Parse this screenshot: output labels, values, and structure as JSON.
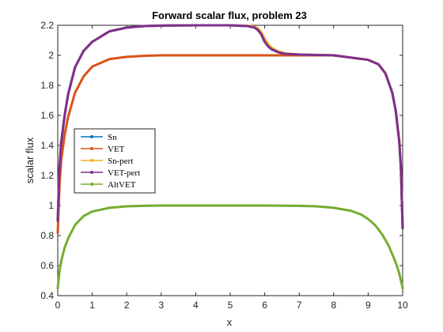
{
  "chart_data": {
    "type": "line",
    "title": "Forward scalar flux, problem 23",
    "xlabel": "x",
    "ylabel": "scalar flux",
    "xlim": [
      0,
      10
    ],
    "ylim": [
      0.4,
      2.2
    ],
    "xticks": [
      "0",
      "1",
      "2",
      "3",
      "4",
      "5",
      "6",
      "7",
      "8",
      "9",
      "10"
    ],
    "yticks": [
      "0.4",
      "0.6",
      "0.8",
      "1",
      "1.2",
      "1.4",
      "1.6",
      "1.8",
      "2",
      "2.2"
    ],
    "grid": false,
    "legend_position": "left",
    "series": [
      {
        "name": "Sn",
        "color": "#0072BD",
        "x": [
          0,
          0.05,
          0.1,
          0.2,
          0.3,
          0.5,
          0.75,
          1.0,
          1.5,
          2.0,
          2.5,
          3.0,
          4.0,
          5.0,
          5.5,
          5.7,
          5.8,
          5.9,
          6.0,
          6.1,
          6.2,
          6.4,
          6.6,
          7.0,
          8.0,
          9.0,
          9.3,
          9.5,
          9.7,
          9.8,
          9.9,
          9.95,
          10.0
        ],
        "y": [
          0.9,
          1.25,
          1.42,
          1.6,
          1.74,
          1.92,
          2.03,
          2.09,
          2.16,
          2.185,
          2.195,
          2.198,
          2.2,
          2.2,
          2.195,
          2.185,
          2.17,
          2.14,
          2.09,
          2.06,
          2.04,
          2.02,
          2.01,
          2.005,
          2.0,
          1.97,
          1.94,
          1.88,
          1.75,
          1.63,
          1.43,
          1.25,
          0.85
        ]
      },
      {
        "name": "VET",
        "color": "#D95319",
        "x": [
          0,
          0.05,
          0.1,
          0.2,
          0.3,
          0.5,
          0.75,
          1.0,
          1.5,
          2.0,
          2.5,
          3.0,
          4.0,
          5.0,
          6.0,
          7.0,
          8.0,
          9.0,
          9.3,
          9.5,
          9.7,
          9.8,
          9.9,
          9.95,
          10.0
        ],
        "y": [
          0.82,
          1.13,
          1.3,
          1.47,
          1.59,
          1.75,
          1.86,
          1.925,
          1.975,
          1.99,
          1.997,
          2.0,
          2.0,
          2.0,
          2.0,
          2.0,
          2.0,
          1.97,
          1.94,
          1.88,
          1.75,
          1.63,
          1.43,
          1.25,
          0.85
        ]
      },
      {
        "name": "Sn-pert",
        "color": "#EDB120",
        "x": [
          0,
          0.05,
          0.1,
          0.2,
          0.3,
          0.5,
          0.75,
          1.0,
          1.5,
          2.0,
          2.5,
          3.0,
          4.0,
          5.0,
          5.5,
          5.7,
          5.8,
          5.9,
          6.0,
          6.1,
          6.2,
          6.4,
          6.6,
          7.0,
          8.0,
          9.0,
          9.3,
          9.5,
          9.7,
          9.8,
          9.9,
          9.95,
          10.0
        ],
        "y": [
          0.9,
          1.25,
          1.42,
          1.6,
          1.74,
          1.92,
          2.03,
          2.09,
          2.16,
          2.185,
          2.195,
          2.198,
          2.2,
          2.2,
          2.197,
          2.19,
          2.18,
          2.155,
          2.11,
          2.075,
          2.05,
          2.025,
          2.012,
          2.005,
          2.0,
          1.97,
          1.94,
          1.88,
          1.75,
          1.63,
          1.43,
          1.25,
          0.85
        ]
      },
      {
        "name": "VET-pert",
        "color": "#7E2F8E",
        "x": [
          0,
          0.05,
          0.1,
          0.2,
          0.3,
          0.5,
          0.75,
          1.0,
          1.5,
          2.0,
          2.5,
          3.0,
          4.0,
          5.0,
          5.5,
          5.7,
          5.8,
          5.9,
          6.0,
          6.1,
          6.2,
          6.4,
          6.6,
          7.0,
          8.0,
          9.0,
          9.3,
          9.5,
          9.7,
          9.8,
          9.9,
          9.95,
          10.0
        ],
        "y": [
          0.9,
          1.25,
          1.42,
          1.6,
          1.74,
          1.92,
          2.03,
          2.09,
          2.16,
          2.185,
          2.195,
          2.198,
          2.2,
          2.2,
          2.195,
          2.185,
          2.17,
          2.14,
          2.09,
          2.06,
          2.04,
          2.02,
          2.01,
          2.005,
          2.0,
          1.97,
          1.94,
          1.88,
          1.75,
          1.63,
          1.43,
          1.25,
          0.85
        ]
      },
      {
        "name": "AltVET",
        "color": "#77AC30",
        "x": [
          0,
          0.05,
          0.1,
          0.2,
          0.3,
          0.5,
          0.75,
          1.0,
          1.5,
          2.0,
          2.5,
          3.0,
          4.0,
          5.0,
          6.0,
          7.0,
          7.5,
          8.0,
          8.5,
          8.8,
          9.0,
          9.2,
          9.4,
          9.6,
          9.8,
          9.9,
          10.0
        ],
        "y": [
          0.45,
          0.56,
          0.63,
          0.72,
          0.78,
          0.87,
          0.93,
          0.96,
          0.985,
          0.995,
          0.998,
          1.0,
          1.0,
          1.0,
          1.0,
          0.998,
          0.995,
          0.985,
          0.965,
          0.94,
          0.91,
          0.87,
          0.81,
          0.73,
          0.62,
          0.55,
          0.45
        ]
      }
    ]
  }
}
